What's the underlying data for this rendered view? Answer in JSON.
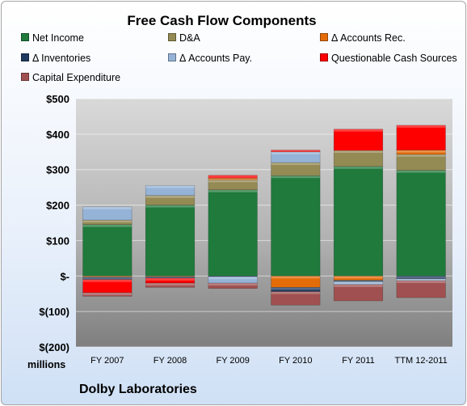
{
  "chart_data": {
    "type": "bar",
    "stacked": true,
    "title": "Free Cash Flow Components",
    "categories": [
      "FY 2007",
      "FY 2008",
      "FY 2009",
      "FY 2010",
      "FY 2011",
      "TTM 12-2011"
    ],
    "yticks": [
      "$500",
      "$400",
      "$300",
      "$200",
      "$100",
      "$-",
      "$(100)",
      "$(200)"
    ],
    "ylim": [
      -200,
      500
    ],
    "unit_label": "millions",
    "legend_position": "top",
    "series": [
      {
        "name": "Net Income",
        "color": "#1f7a3c",
        "values": [
          145,
          200,
          243,
          283,
          309,
          298
        ]
      },
      {
        "name": "D&A",
        "color": "#948a54",
        "values": [
          13,
          27,
          28,
          37,
          45,
          45
        ]
      },
      {
        "name": "Δ Accounts Rec.",
        "color": "#e36c09",
        "values": [
          -3,
          -2,
          5,
          -32,
          -12,
          12
        ]
      },
      {
        "name": "Δ Inventories",
        "color": "#1f3a5f",
        "values": [
          -7,
          -4,
          -2,
          -12,
          -4,
          -8
        ]
      },
      {
        "name": "Δ Accounts Pay.",
        "color": "#95b3d7",
        "values": [
          37,
          28,
          -18,
          30,
          -8,
          -5
        ]
      },
      {
        "name": "Questionable Cash Sources",
        "color": "#ff0000",
        "values": [
          -37,
          -14,
          8,
          5,
          60,
          70
        ]
      },
      {
        "name": "Capital Expenditure",
        "color": "#a05050",
        "values": [
          -10,
          -12,
          -15,
          -38,
          -46,
          -48
        ]
      }
    ]
  },
  "footer": {
    "company": "Dolby Laboratories"
  }
}
